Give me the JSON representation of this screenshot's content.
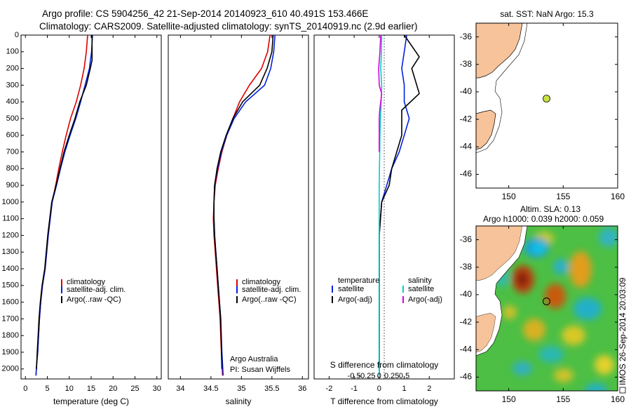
{
  "header": {
    "line1": "Argo profile: CS 5904256_42 21-Sep-2014 20140923_610 40.491S 153.466E",
    "line2": "Climatology: CARS2009. Satellite-adjusted climatology: synTS_20140919.nc (2.9d earlier)"
  },
  "sidebar_stamp": "IMOS 26-Sep-2014 20:03:09",
  "colors": {
    "climatology": "#dd0000",
    "satellite": "#0022dd",
    "argo": "#000000",
    "salinity_satellite": "#00cccc",
    "salinity_argo": "#dd00dd",
    "land": "#f7c39a",
    "float_marker": "#c8e040"
  },
  "depth_axis": {
    "ticks": [
      0,
      100,
      200,
      300,
      400,
      500,
      600,
      700,
      800,
      900,
      1000,
      1100,
      1200,
      1300,
      1400,
      1500,
      1600,
      1700,
      1800,
      1900,
      2000
    ],
    "tick_labels": [
      "0",
      "100",
      "200",
      "300",
      "400",
      "500",
      "600",
      "700",
      "800",
      "900",
      "1000",
      "1100",
      "1200",
      "1300",
      "1400",
      "1500",
      "1600",
      "1700",
      "1800",
      "1900",
      "2000"
    ],
    "lim": [
      0,
      2060
    ]
  },
  "chart_data": [
    {
      "type": "line",
      "id": "temperature",
      "xlabel": "temperature (deg C)",
      "xlim": [
        -1,
        31
      ],
      "ylim": [
        0,
        2060
      ],
      "xticks": [
        0,
        5,
        10,
        15,
        20,
        25,
        30
      ],
      "xtick_labels": [
        "0",
        "5",
        "10",
        "15",
        "20",
        "25",
        "30"
      ],
      "legend": {
        "placement": "bottom-middle",
        "entries": [
          "climatology",
          "satellite-adj. clim.",
          "Argo(..raw -QC)"
        ]
      },
      "series": [
        {
          "name": "climatology",
          "color_key": "climatology",
          "x": [
            14.2,
            13.9,
            13.4,
            12.6,
            11.6,
            10.3,
            9.3,
            8.4,
            7.6,
            6.9,
            6.1,
            5.2,
            4.5,
            3.9,
            3.5,
            3.2,
            3.0,
            2.8,
            2.6,
            2.5,
            2.4
          ],
          "y": [
            0,
            100,
            200,
            300,
            400,
            500,
            600,
            700,
            800,
            900,
            1000,
            1200,
            1400,
            1500,
            1600,
            1700,
            1800,
            1900,
            1960,
            2000,
            2040
          ]
        },
        {
          "name": "satellite-adj. clim.",
          "color_key": "satellite",
          "x": [
            15.3,
            15.1,
            14.6,
            13.6,
            12.6,
            11.5,
            10.2,
            9.0,
            8.0,
            7.1,
            6.1,
            5.2,
            4.5,
            3.9,
            3.5,
            3.2,
            3.0,
            2.8,
            2.6,
            2.5,
            2.4
          ],
          "y": [
            0,
            100,
            200,
            300,
            400,
            500,
            600,
            700,
            800,
            900,
            1000,
            1200,
            1400,
            1500,
            1600,
            1700,
            1800,
            1900,
            1960,
            2000,
            2040
          ]
        },
        {
          "name": "Argo(..raw -QC)",
          "color_key": "argo",
          "x": [
            15.2,
            15.2,
            14.8,
            13.9,
            12.4,
            11.3,
            10.0,
            8.8,
            7.9,
            7.0,
            6.0,
            5.1,
            4.4,
            3.8,
            3.4,
            3.1,
            2.9,
            2.7,
            2.6,
            2.5
          ],
          "y": [
            0,
            150,
            200,
            300,
            400,
            500,
            600,
            700,
            800,
            900,
            1000,
            1200,
            1400,
            1500,
            1600,
            1700,
            1800,
            1900,
            1960,
            2000
          ]
        }
      ]
    },
    {
      "type": "line",
      "id": "salinity",
      "xlabel": "salinity",
      "xlim": [
        33.8,
        36.1
      ],
      "ylim": [
        0,
        2060
      ],
      "xticks": [
        34,
        34.5,
        35,
        35.5,
        36
      ],
      "xtick_labels": [
        "34",
        "34.5",
        "35",
        "35.5",
        "36"
      ],
      "annotation": [
        "Argo Australia",
        "PI: Susan Wijffels"
      ],
      "legend": {
        "placement": "bottom-right",
        "entries": [
          "climatology",
          "satellite-adj. clim.",
          "Argo(..raw -QC)"
        ]
      },
      "series": [
        {
          "name": "climatology",
          "color_key": "climatology",
          "x": [
            35.47,
            35.43,
            35.33,
            35.13,
            34.97,
            34.86,
            34.76,
            34.68,
            34.62,
            34.57,
            34.55,
            34.54,
            34.55,
            34.57,
            34.59,
            34.61,
            34.63,
            34.65,
            34.67,
            34.69
          ],
          "y": [
            0,
            100,
            200,
            300,
            400,
            500,
            600,
            700,
            800,
            900,
            1000,
            1100,
            1200,
            1300,
            1400,
            1500,
            1600,
            1700,
            1900,
            2040
          ]
        },
        {
          "name": "satellite-adj. clim.",
          "color_key": "satellite",
          "x": [
            35.55,
            35.53,
            35.48,
            35.38,
            35.07,
            34.88,
            34.76,
            34.67,
            34.61,
            34.56,
            34.55,
            34.55,
            34.56,
            34.58,
            34.6,
            34.62,
            34.64,
            34.66,
            34.68,
            34.7
          ],
          "y": [
            0,
            100,
            200,
            300,
            400,
            500,
            600,
            700,
            800,
            900,
            1000,
            1100,
            1200,
            1300,
            1400,
            1500,
            1600,
            1700,
            1900,
            2040
          ]
        },
        {
          "name": "Argo(..raw -QC)",
          "color_key": "argo",
          "x": [
            35.52,
            35.5,
            35.42,
            35.3,
            35.02,
            34.86,
            34.75,
            34.66,
            34.6,
            34.56,
            34.55,
            34.55,
            34.56,
            34.58,
            34.6,
            34.62,
            34.64,
            34.66,
            34.68
          ],
          "y": [
            0,
            100,
            200,
            300,
            400,
            500,
            600,
            700,
            800,
            900,
            1000,
            1100,
            1200,
            1300,
            1400,
            1500,
            1600,
            1700,
            2000
          ]
        }
      ]
    },
    {
      "type": "line",
      "id": "differences",
      "xlabel": "T difference from climatology",
      "xlabel_top": "S difference from climatology",
      "xlim": [
        -2.6,
        3.0
      ],
      "ylim": [
        0,
        2060
      ],
      "xticks": [
        -2,
        -1,
        0,
        1,
        2
      ],
      "xtick_labels": [
        "-2",
        "-1",
        "0",
        "1",
        "2"
      ],
      "sticks": [
        -0.5,
        -0.25,
        0,
        0.25,
        0.5
      ],
      "stick_labels": [
        "-0.5",
        "-0.25",
        "0",
        "0.25",
        "0.5"
      ],
      "legend": {
        "placement": "middle",
        "headers": [
          "temperature",
          "salinity"
        ],
        "entries": [
          "satellite",
          "Argo(-adj)",
          "satellite",
          "Argo(-adj)"
        ]
      },
      "series": [
        {
          "name": "satellite",
          "group": "temperature",
          "color_key": "satellite",
          "x": [
            1.1,
            1.0,
            0.9,
            1.0,
            1.0,
            1.2,
            1.0,
            0.8,
            0.5,
            0.3,
            0.1,
            0.0,
            0.0,
            0.0
          ],
          "y": [
            0,
            100,
            200,
            300,
            400,
            500,
            600,
            700,
            800,
            900,
            1000,
            1200,
            1500,
            2040
          ]
        },
        {
          "name": "Argo(-adj)",
          "group": "temperature",
          "color_key": "argo",
          "x": [
            1.0,
            1.6,
            1.3,
            1.6,
            0.9,
            0.9,
            0.7,
            0.5,
            0.4,
            0.1,
            0.0,
            0.0,
            0.0
          ],
          "y": [
            0,
            130,
            200,
            350,
            450,
            600,
            700,
            800,
            900,
            1000,
            1200,
            1500,
            2000
          ]
        },
        {
          "name": "satellite",
          "group": "salinity",
          "color_key": "salinity_satellite",
          "x": [
            0.1,
            0.09,
            0.06,
            0.1,
            0.08,
            0.05,
            0.03,
            0.02,
            0.01,
            0.0,
            0.0,
            0.0,
            0.0
          ],
          "y": [
            0,
            100,
            200,
            300,
            400,
            500,
            600,
            700,
            800,
            900,
            1000,
            1500,
            2040
          ]
        },
        {
          "name": "Argo(-adj)",
          "group": "salinity",
          "color_key": "salinity_argo",
          "x": [
            0.06,
            0.03,
            -0.02,
            0.0,
            0.1,
            0.02,
            0.0,
            0.0,
            0.0
          ],
          "y": [
            0,
            100,
            200,
            300,
            350,
            450,
            500,
            600,
            700
          ]
        }
      ]
    }
  ],
  "maps": [
    {
      "id": "sst_map",
      "title": "sat. SST: NaN Argo: 15.3",
      "xlim": [
        147,
        160
      ],
      "ylim": [
        -47,
        -35
      ],
      "xticks": [
        150,
        155,
        160
      ],
      "xtick_labels": [
        "150",
        "155",
        "160"
      ],
      "yticks": [
        -36,
        -38,
        -40,
        -42,
        -44,
        -46
      ],
      "ytick_labels": [
        "-36",
        "-38",
        "-40",
        "-42",
        "-44",
        "-46"
      ],
      "float_lon": 153.466,
      "float_lat": -40.491
    },
    {
      "id": "sla_map",
      "title": "Altim. SLA: 0.13",
      "subtitle": "Argo h1000: 0.039 h2000: 0.059",
      "xlim": [
        147,
        160
      ],
      "ylim": [
        -47,
        -35
      ],
      "xticks": [
        150,
        155,
        160
      ],
      "xtick_labels": [
        "150",
        "155",
        "160"
      ],
      "yticks": [
        -36,
        -38,
        -40,
        -42,
        -44,
        -46
      ],
      "ytick_labels": [
        "-36",
        "-38",
        "-40",
        "-42",
        "-44",
        "-46"
      ],
      "float_lon": 153.466,
      "float_lat": -40.491
    }
  ]
}
